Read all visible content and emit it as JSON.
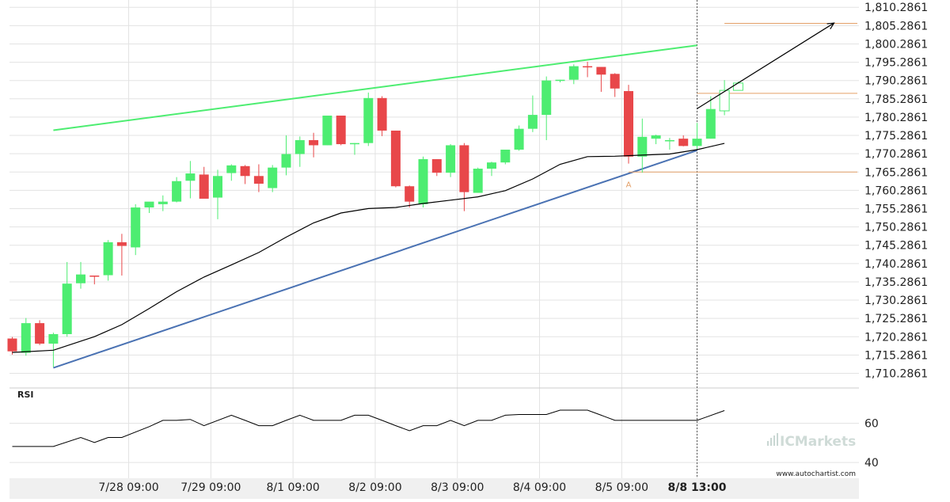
{
  "chart_data": {
    "type": "candlestick",
    "price_panel": {
      "ylim": [
        1706.2861,
        1812.2861
      ],
      "y_ticks": [
        1710.2861,
        1715.2861,
        1720.2861,
        1725.2861,
        1730.2861,
        1735.2861,
        1740.2861,
        1745.2861,
        1750.2861,
        1755.2861,
        1760.2861,
        1765.2861,
        1770.2861,
        1775.2861,
        1780.2861,
        1785.2861,
        1790.2861,
        1795.2861,
        1800.2861,
        1805.2861,
        1810.2861
      ],
      "y_tick_labels": [
        "1,710.2861",
        "1,715.2861",
        "1,720.2861",
        "1,725.2861",
        "1,730.2861",
        "1,735.2861",
        "1,740.2861",
        "1,745.2861",
        "1,750.2861",
        "1,755.2861",
        "1,760.2861",
        "1,765.2861",
        "1,770.2861",
        "1,775.2861",
        "1,780.2861",
        "1,785.2861",
        "1,790.2861",
        "1,795.2861",
        "1,800.2861",
        "1,805.2861",
        "1,810.2861"
      ],
      "bar_count": 52,
      "candles": [
        {
          "o": 1719.8,
          "h": 1720.2,
          "l": 1715.4,
          "c": 1716.3
        },
        {
          "o": 1715.9,
          "h": 1725.4,
          "l": 1715.1,
          "c": 1724.0
        },
        {
          "o": 1724.0,
          "h": 1724.8,
          "l": 1718.0,
          "c": 1718.4
        },
        {
          "o": 1718.4,
          "h": 1721.4,
          "l": 1712.0,
          "c": 1721.0
        },
        {
          "o": 1721.0,
          "h": 1740.7,
          "l": 1720.3,
          "c": 1734.8
        },
        {
          "o": 1734.9,
          "h": 1740.7,
          "l": 1733.4,
          "c": 1737.3
        },
        {
          "o": 1737.0,
          "h": 1737.0,
          "l": 1734.6,
          "c": 1736.8
        },
        {
          "o": 1737.1,
          "h": 1746.7,
          "l": 1735.6,
          "c": 1746.1
        },
        {
          "o": 1746.1,
          "h": 1748.4,
          "l": 1737.0,
          "c": 1745.1
        },
        {
          "o": 1744.7,
          "h": 1756.5,
          "l": 1742.6,
          "c": 1755.6
        },
        {
          "o": 1755.6,
          "h": 1757.0,
          "l": 1754.1,
          "c": 1757.2
        },
        {
          "o": 1756.5,
          "h": 1758.9,
          "l": 1754.6,
          "c": 1757.2
        },
        {
          "o": 1757.2,
          "h": 1763.9,
          "l": 1757.0,
          "c": 1762.8
        },
        {
          "o": 1762.9,
          "h": 1768.3,
          "l": 1758.1,
          "c": 1764.9
        },
        {
          "o": 1764.6,
          "h": 1766.7,
          "l": 1758.1,
          "c": 1758.0
        },
        {
          "o": 1758.3,
          "h": 1765.9,
          "l": 1752.4,
          "c": 1764.2
        },
        {
          "o": 1765.0,
          "h": 1767.4,
          "l": 1762.9,
          "c": 1767.1
        },
        {
          "o": 1766.9,
          "h": 1767.2,
          "l": 1762.0,
          "c": 1764.2
        },
        {
          "o": 1764.2,
          "h": 1767.4,
          "l": 1759.8,
          "c": 1762.1
        },
        {
          "o": 1760.9,
          "h": 1767.2,
          "l": 1759.8,
          "c": 1766.5
        },
        {
          "o": 1766.5,
          "h": 1775.3,
          "l": 1764.4,
          "c": 1770.2
        },
        {
          "o": 1770.2,
          "h": 1775.0,
          "l": 1766.7,
          "c": 1774.0
        },
        {
          "o": 1774.0,
          "h": 1776.0,
          "l": 1769.3,
          "c": 1772.6
        },
        {
          "o": 1772.6,
          "h": 1780.2,
          "l": 1772.6,
          "c": 1780.7
        },
        {
          "o": 1780.7,
          "h": 1780.7,
          "l": 1772.6,
          "c": 1772.9
        },
        {
          "o": 1772.9,
          "h": 1773.2,
          "l": 1770.0,
          "c": 1773.2
        },
        {
          "o": 1773.2,
          "h": 1787.0,
          "l": 1772.4,
          "c": 1785.5
        },
        {
          "o": 1785.5,
          "h": 1786.0,
          "l": 1775.1,
          "c": 1776.6
        },
        {
          "o": 1776.6,
          "h": 1776.6,
          "l": 1761.1,
          "c": 1761.4
        },
        {
          "o": 1761.4,
          "h": 1761.6,
          "l": 1755.6,
          "c": 1757.2
        },
        {
          "o": 1756.5,
          "h": 1769.5,
          "l": 1755.6,
          "c": 1768.8
        },
        {
          "o": 1768.8,
          "h": 1768.8,
          "l": 1764.2,
          "c": 1765.1
        },
        {
          "o": 1765.1,
          "h": 1772.9,
          "l": 1763.9,
          "c": 1772.6
        },
        {
          "o": 1772.6,
          "h": 1773.2,
          "l": 1754.6,
          "c": 1759.8
        },
        {
          "o": 1759.6,
          "h": 1766.5,
          "l": 1759.6,
          "c": 1766.2
        },
        {
          "o": 1766.2,
          "h": 1768.1,
          "l": 1764.2,
          "c": 1767.9
        },
        {
          "o": 1767.9,
          "h": 1771.4,
          "l": 1767.4,
          "c": 1771.4
        },
        {
          "o": 1771.4,
          "h": 1778.0,
          "l": 1771.1,
          "c": 1777.1
        },
        {
          "o": 1777.1,
          "h": 1786.2,
          "l": 1776.2,
          "c": 1780.9
        },
        {
          "o": 1780.9,
          "h": 1791.4,
          "l": 1774.0,
          "c": 1790.3
        },
        {
          "o": 1790.3,
          "h": 1790.5,
          "l": 1789.8,
          "c": 1790.5
        },
        {
          "o": 1790.5,
          "h": 1794.7,
          "l": 1789.3,
          "c": 1794.2
        },
        {
          "o": 1794.2,
          "h": 1795.4,
          "l": 1791.2,
          "c": 1794.0
        },
        {
          "o": 1794.0,
          "h": 1794.0,
          "l": 1787.2,
          "c": 1791.9
        },
        {
          "o": 1792.1,
          "h": 1792.3,
          "l": 1785.8,
          "c": 1788.1
        },
        {
          "o": 1787.4,
          "h": 1789.1,
          "l": 1767.6,
          "c": 1769.5
        },
        {
          "o": 1769.5,
          "h": 1779.9,
          "l": 1765.1,
          "c": 1774.9
        },
        {
          "o": 1774.4,
          "h": 1775.5,
          "l": 1772.9,
          "c": 1775.3
        },
        {
          "o": 1774.0,
          "h": 1774.6,
          "l": 1771.4,
          "c": 1774.0
        },
        {
          "o": 1774.4,
          "h": 1775.3,
          "l": 1772.3,
          "c": 1772.4
        },
        {
          "o": 1772.4,
          "h": 1778.7,
          "l": 1771.6,
          "c": 1774.4
        },
        {
          "o": 1774.4,
          "h": 1786.0,
          "l": 1774.4,
          "c": 1782.5
        }
      ],
      "projection_candles": [
        {
          "o": 1782.0,
          "h": 1790.4,
          "l": 1780.8,
          "c": 1787.6
        },
        {
          "o": 1787.6,
          "h": 1790.0,
          "l": 1787.6,
          "c": 1789.6
        }
      ],
      "moving_average": [
        {
          "i": 0,
          "v": 1716.0
        },
        {
          "i": 3,
          "v": 1716.6
        },
        {
          "i": 6,
          "v": 1720.3
        },
        {
          "i": 8,
          "v": 1723.6
        },
        {
          "i": 10,
          "v": 1728.0
        },
        {
          "i": 12,
          "v": 1732.6
        },
        {
          "i": 14,
          "v": 1736.6
        },
        {
          "i": 16,
          "v": 1739.9
        },
        {
          "i": 18,
          "v": 1743.3
        },
        {
          "i": 20,
          "v": 1747.5
        },
        {
          "i": 22,
          "v": 1751.4
        },
        {
          "i": 24,
          "v": 1754.1
        },
        {
          "i": 26,
          "v": 1755.3
        },
        {
          "i": 28,
          "v": 1755.6
        },
        {
          "i": 30,
          "v": 1756.7
        },
        {
          "i": 32,
          "v": 1757.6
        },
        {
          "i": 34,
          "v": 1758.5
        },
        {
          "i": 36,
          "v": 1760.2
        },
        {
          "i": 38,
          "v": 1763.4
        },
        {
          "i": 40,
          "v": 1767.4
        },
        {
          "i": 42,
          "v": 1769.5
        },
        {
          "i": 44,
          "v": 1769.6
        },
        {
          "i": 46,
          "v": 1769.9
        },
        {
          "i": 48,
          "v": 1770.2
        },
        {
          "i": 50,
          "v": 1771.4
        },
        {
          "i": 52,
          "v": 1773.1
        }
      ],
      "resistance_line": {
        "start": {
          "i": 3,
          "v": 1776.7
        },
        "end": {
          "i": 50,
          "v": 1799.9
        },
        "color": "#4ded71"
      },
      "support_line": {
        "start": {
          "i": 3,
          "v": 1711.8
        },
        "end": {
          "i": 50,
          "v": 1771.2
        },
        "color": "#4a72b3"
      },
      "horizontal_levels": [
        {
          "value": 1805.9,
          "from_i": 52,
          "color": "#e4a068"
        },
        {
          "value": 1786.8,
          "from_i": 50,
          "color": "#e4a068"
        },
        {
          "value": 1765.3,
          "from_i": 45,
          "color": "#e4a068"
        }
      ],
      "forecast_arrow": {
        "from": {
          "i": 50,
          "v": 1782.6
        },
        "to": {
          "i": 60,
          "v": 1806.0
        }
      },
      "point_label": {
        "text": "A",
        "i": 45,
        "v": 1763.3
      },
      "current_time_index": 50,
      "x_ticks": [
        {
          "i": 8.5,
          "label": "7/28 09:00"
        },
        {
          "i": 14.5,
          "label": "7/29 09:00"
        },
        {
          "i": 20.5,
          "label": "8/1 09:00"
        },
        {
          "i": 26.5,
          "label": "8/2 09:00"
        },
        {
          "i": 32.5,
          "label": "8/3 09:00"
        },
        {
          "i": 38.5,
          "label": "8/4 09:00"
        },
        {
          "i": 44.5,
          "label": "8/5 09:00"
        },
        {
          "i": 50,
          "label": "8/8 13:00",
          "bold": true
        }
      ]
    },
    "rsi_panel": {
      "title": "RSI",
      "ylim": [
        32,
        78
      ],
      "y_ticks": [
        40,
        60
      ],
      "values": [
        {
          "i": 0,
          "v": 48.2
        },
        {
          "i": 3,
          "v": 48.2
        },
        {
          "i": 5,
          "v": 52.8
        },
        {
          "i": 6,
          "v": 50.2
        },
        {
          "i": 7,
          "v": 52.8
        },
        {
          "i": 8,
          "v": 52.8
        },
        {
          "i": 10,
          "v": 58.3
        },
        {
          "i": 11,
          "v": 61.5
        },
        {
          "i": 12,
          "v": 61.5
        },
        {
          "i": 13,
          "v": 62.0
        },
        {
          "i": 14,
          "v": 58.8
        },
        {
          "i": 16,
          "v": 64.1
        },
        {
          "i": 17,
          "v": 61.5
        },
        {
          "i": 18,
          "v": 58.8
        },
        {
          "i": 19,
          "v": 58.8
        },
        {
          "i": 20,
          "v": 61.5
        },
        {
          "i": 21,
          "v": 64.1
        },
        {
          "i": 22,
          "v": 61.5
        },
        {
          "i": 24,
          "v": 61.5
        },
        {
          "i": 25,
          "v": 64.1
        },
        {
          "i": 26,
          "v": 64.1
        },
        {
          "i": 27,
          "v": 61.5
        },
        {
          "i": 28,
          "v": 58.8
        },
        {
          "i": 29,
          "v": 56.2
        },
        {
          "i": 30,
          "v": 58.8
        },
        {
          "i": 31,
          "v": 58.8
        },
        {
          "i": 32,
          "v": 61.5
        },
        {
          "i": 33,
          "v": 58.8
        },
        {
          "i": 34,
          "v": 61.5
        },
        {
          "i": 35,
          "v": 61.5
        },
        {
          "i": 36,
          "v": 64.1
        },
        {
          "i": 37,
          "v": 64.5
        },
        {
          "i": 39,
          "v": 64.5
        },
        {
          "i": 40,
          "v": 66.7
        },
        {
          "i": 42,
          "v": 66.7
        },
        {
          "i": 43,
          "v": 64.1
        },
        {
          "i": 44,
          "v": 61.5
        },
        {
          "i": 50,
          "v": 61.5
        },
        {
          "i": 52,
          "v": 66.5
        }
      ]
    },
    "colors": {
      "bull": "#4ded71",
      "bear": "#e8474a",
      "grid": "#e3e3e3",
      "axis_text": "#222222",
      "ma": "#000000",
      "panel_bottom": "#f0f0f0"
    }
  },
  "branding": {
    "watermark": "ICMarkets",
    "site": "www.autochartist.com"
  }
}
